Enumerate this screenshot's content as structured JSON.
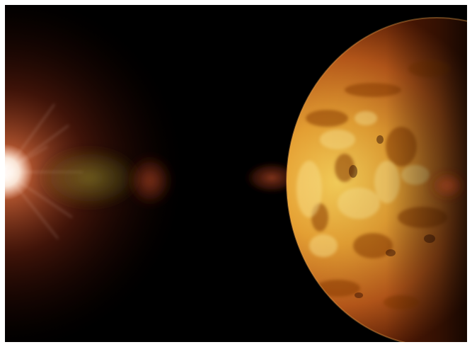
{
  "image": {
    "subject": "planet-with-sun-flare",
    "colors": {
      "background": "#000000",
      "frame": "#ffffff",
      "planet_light": "#f2c04a",
      "planet_mid": "#d8801e",
      "planet_dark": "#7a2a06",
      "sun_core": "#ffffff",
      "sun_glow": "#c8401a",
      "flare_green": "#8a8a2a",
      "flare_red": "#b0401e"
    }
  }
}
